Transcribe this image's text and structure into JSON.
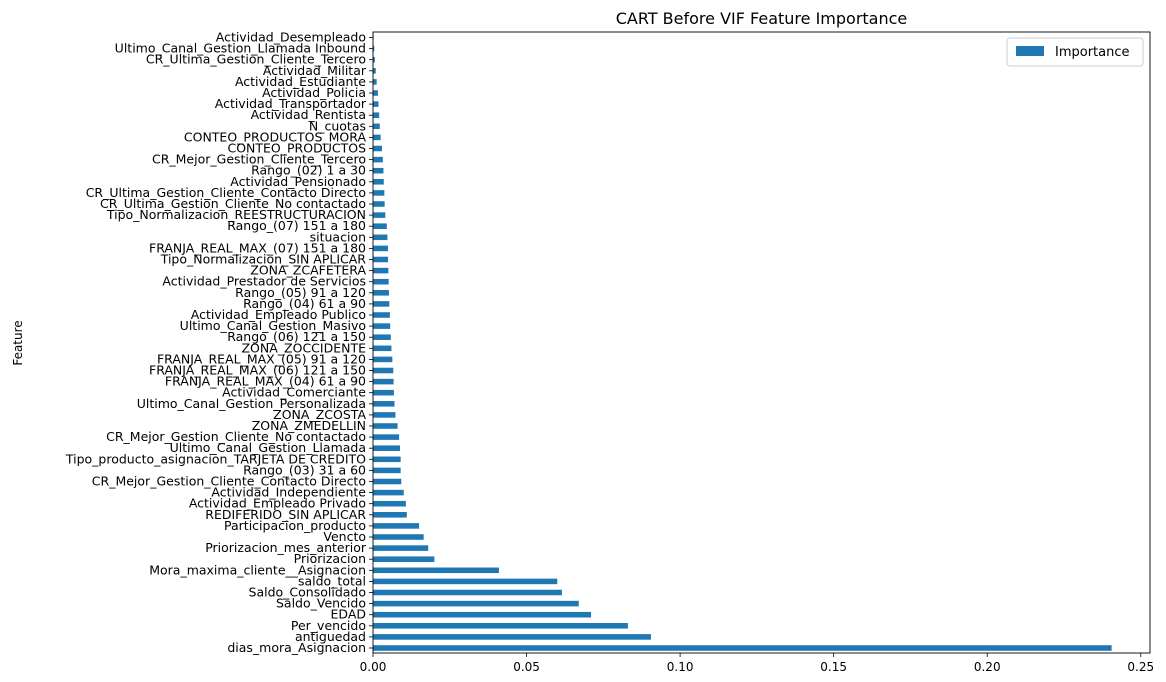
{
  "chart_data": {
    "type": "bar",
    "orientation": "horizontal",
    "title": "CART Before VIF Feature Importance",
    "xlabel": "",
    "ylabel": "Feature",
    "xlim": [
      0,
      0.253
    ],
    "xticks": [
      0,
      0.05,
      0.1,
      0.15,
      0.2,
      0.25
    ],
    "xtick_labels": [
      "0.00",
      "0.05",
      "0.10",
      "0.15",
      "0.20",
      "0.25"
    ],
    "grid": false,
    "legend_position": "top-right",
    "color": "#1f77b4",
    "series": [
      {
        "name": "Importance",
        "categories": [
          "dias_mora_Asignacion",
          "antiguedad",
          "Per_vencido",
          "EDAD",
          "Saldo_Vencido",
          "Saldo_Consolidado",
          "saldo_total",
          "Mora_maxima_cliente__Asignacion",
          "Priorizacion",
          "Priorizacion_mes_anterior",
          "Vencto",
          "Participacion_producto",
          "REDIFERIDO_SIN APLICAR",
          "Actividad_Empleado Privado",
          "Actividad_Independiente",
          "CR_Mejor_Gestion_Cliente_Contacto Directo",
          "Rango_(03) 31 a 60",
          "Tipo_producto_asignacion_TARJETA DE CREDITO",
          "Ultimo_Canal_Gestion_Llamada",
          "CR_Mejor_Gestion_Cliente_No contactado",
          "ZONA_ZMEDELLIN",
          "ZONA_ZCOSTA",
          "Ultimo_Canal_Gestion_Personalizada",
          "Actividad_Comerciante",
          "FRANJA_REAL_MAX_(04) 61 a 90",
          "FRANJA_REAL_MAX_(06) 121 a 150",
          "FRANJA_REAL_MAX_(05) 91 a 120",
          "ZONA_ZOCCIDENTE",
          "Rango_(06) 121 a 150",
          "Ultimo_Canal_Gestion_Masivo",
          "Actividad_Empleado Publico",
          "Rango_(04) 61 a 90",
          "Rango_(05) 91 a 120",
          "Actividad_Prestador de Servicios",
          "ZONA_ZCAFETERA",
          "Tipo_Normalizacion_SIN APLICAR",
          "FRANJA_REAL_MAX_(07) 151 a 180",
          "situacion",
          "Rango_(07) 151 a 180",
          "Tipo_Normalizacion_REESTRUCTURACION",
          "CR_Ultima_Gestion_Cliente_No contactado",
          "CR_Ultima_Gestion_Cliente_Contacto Directo",
          "Actividad_Pensionado",
          "Rango_(02) 1 a 30",
          "CR_Mejor_Gestion_Cliente_Tercero",
          "CONTEO_PRODUCTOS",
          "CONTEO_PRODUCTOS_MORA",
          "N_cuotas",
          "Actividad_Rentista",
          "Actividad_Transportador",
          "Actividad_Policia",
          "Actividad_Estudiante",
          "Actividad_Militar",
          "CR_Ultima_Gestion_Cliente_Tercero",
          "Ultimo_Canal_Gestion_Llamada Inbound",
          "Actividad_Desempleado"
        ],
        "values": [
          0.2405,
          0.0905,
          0.083,
          0.071,
          0.067,
          0.0615,
          0.06,
          0.041,
          0.02,
          0.018,
          0.0165,
          0.015,
          0.011,
          0.0107,
          0.01,
          0.0092,
          0.009,
          0.009,
          0.0088,
          0.0085,
          0.008,
          0.0073,
          0.007,
          0.0068,
          0.0067,
          0.0066,
          0.0063,
          0.006,
          0.0058,
          0.0056,
          0.0055,
          0.0053,
          0.0052,
          0.0051,
          0.005,
          0.0049,
          0.0049,
          0.0047,
          0.0045,
          0.004,
          0.0038,
          0.0037,
          0.0035,
          0.0034,
          0.0032,
          0.0029,
          0.0025,
          0.0022,
          0.002,
          0.0018,
          0.0016,
          0.0012,
          0.0009,
          0.0006,
          0.0004,
          0.0002
        ]
      }
    ]
  }
}
